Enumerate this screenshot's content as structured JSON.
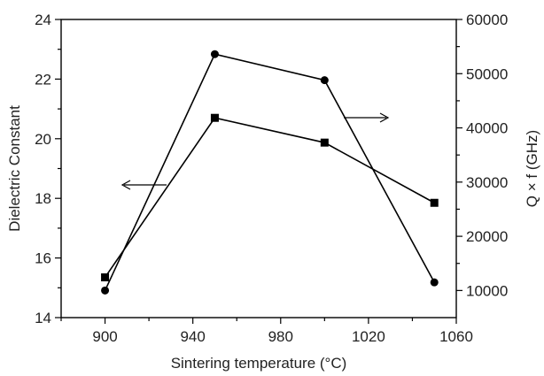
{
  "chart_data": {
    "type": "line",
    "xlabel": "Sintering temperature (°C)",
    "ylabel": "Dielectric Constant",
    "y2label": "Q × f (GHz)",
    "xlim": [
      880,
      1060
    ],
    "ylim": [
      14,
      24
    ],
    "y2lim": [
      5000,
      60000
    ],
    "xticks": [
      900,
      940,
      980,
      1020,
      1060
    ],
    "yticks": [
      14,
      16,
      18,
      20,
      22,
      24
    ],
    "y2ticks": [
      10000,
      20000,
      30000,
      40000,
      50000,
      60000
    ],
    "grid": false,
    "series": [
      {
        "axis": "left",
        "marker": "square",
        "x": [
          900,
          950,
          1000,
          1050
        ],
        "values": [
          15.35,
          20.7,
          19.87,
          17.85
        ]
      },
      {
        "axis": "right",
        "marker": "circle",
        "x": [
          900,
          950,
          1000,
          1050
        ],
        "values": [
          10000,
          53600,
          48800,
          11500
        ]
      }
    ],
    "annotations": [
      {
        "kind": "arrow",
        "points_to": "left-axis",
        "series_index": 0
      },
      {
        "kind": "arrow",
        "points_to": "right-axis",
        "series_index": 1
      }
    ]
  }
}
